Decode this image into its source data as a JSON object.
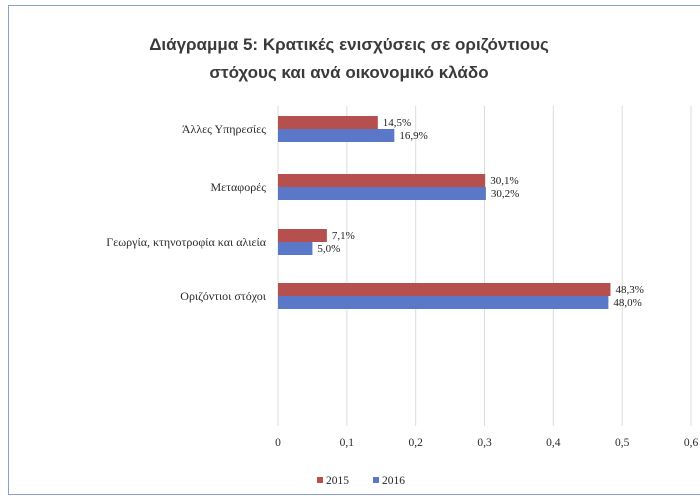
{
  "chart_data": {
    "type": "bar",
    "orientation": "horizontal",
    "title": "Διάγραμμα 5: Κρατικές ενισχύσεις σε οριζόντιους στόχους και ανά οικονομικό κλάδο",
    "title_lines": [
      "Διάγραμμα 5: Κρατικές ενισχύσεις σε οριζόντιους",
      "στόχους και ανά οικονομικό κλάδο"
    ],
    "categories": [
      "Άλλες Υπηρεσίες",
      "Μεταφορές",
      "Γεωργία, κτηνοτροφία και αλιεία",
      "Οριζόντιοι στόχοι"
    ],
    "series": [
      {
        "name": "2015",
        "color": "#b5504f",
        "values": [
          0.145,
          0.301,
          0.071,
          0.483
        ],
        "labels": [
          "14,5%",
          "30,1%",
          "7,1%",
          "48,3%"
        ]
      },
      {
        "name": "2016",
        "color": "#5b78c8",
        "values": [
          0.169,
          0.302,
          0.05,
          0.48
        ],
        "labels": [
          "16,9%",
          "30,2%",
          "5,0%",
          "48,0%"
        ]
      }
    ],
    "x_ticks": [
      "0",
      "0,1",
      "0,2",
      "0,3",
      "0,4",
      "0,5",
      "0,6"
    ],
    "xlim": [
      0,
      0.6
    ],
    "grid": true,
    "legend_position": "bottom"
  }
}
